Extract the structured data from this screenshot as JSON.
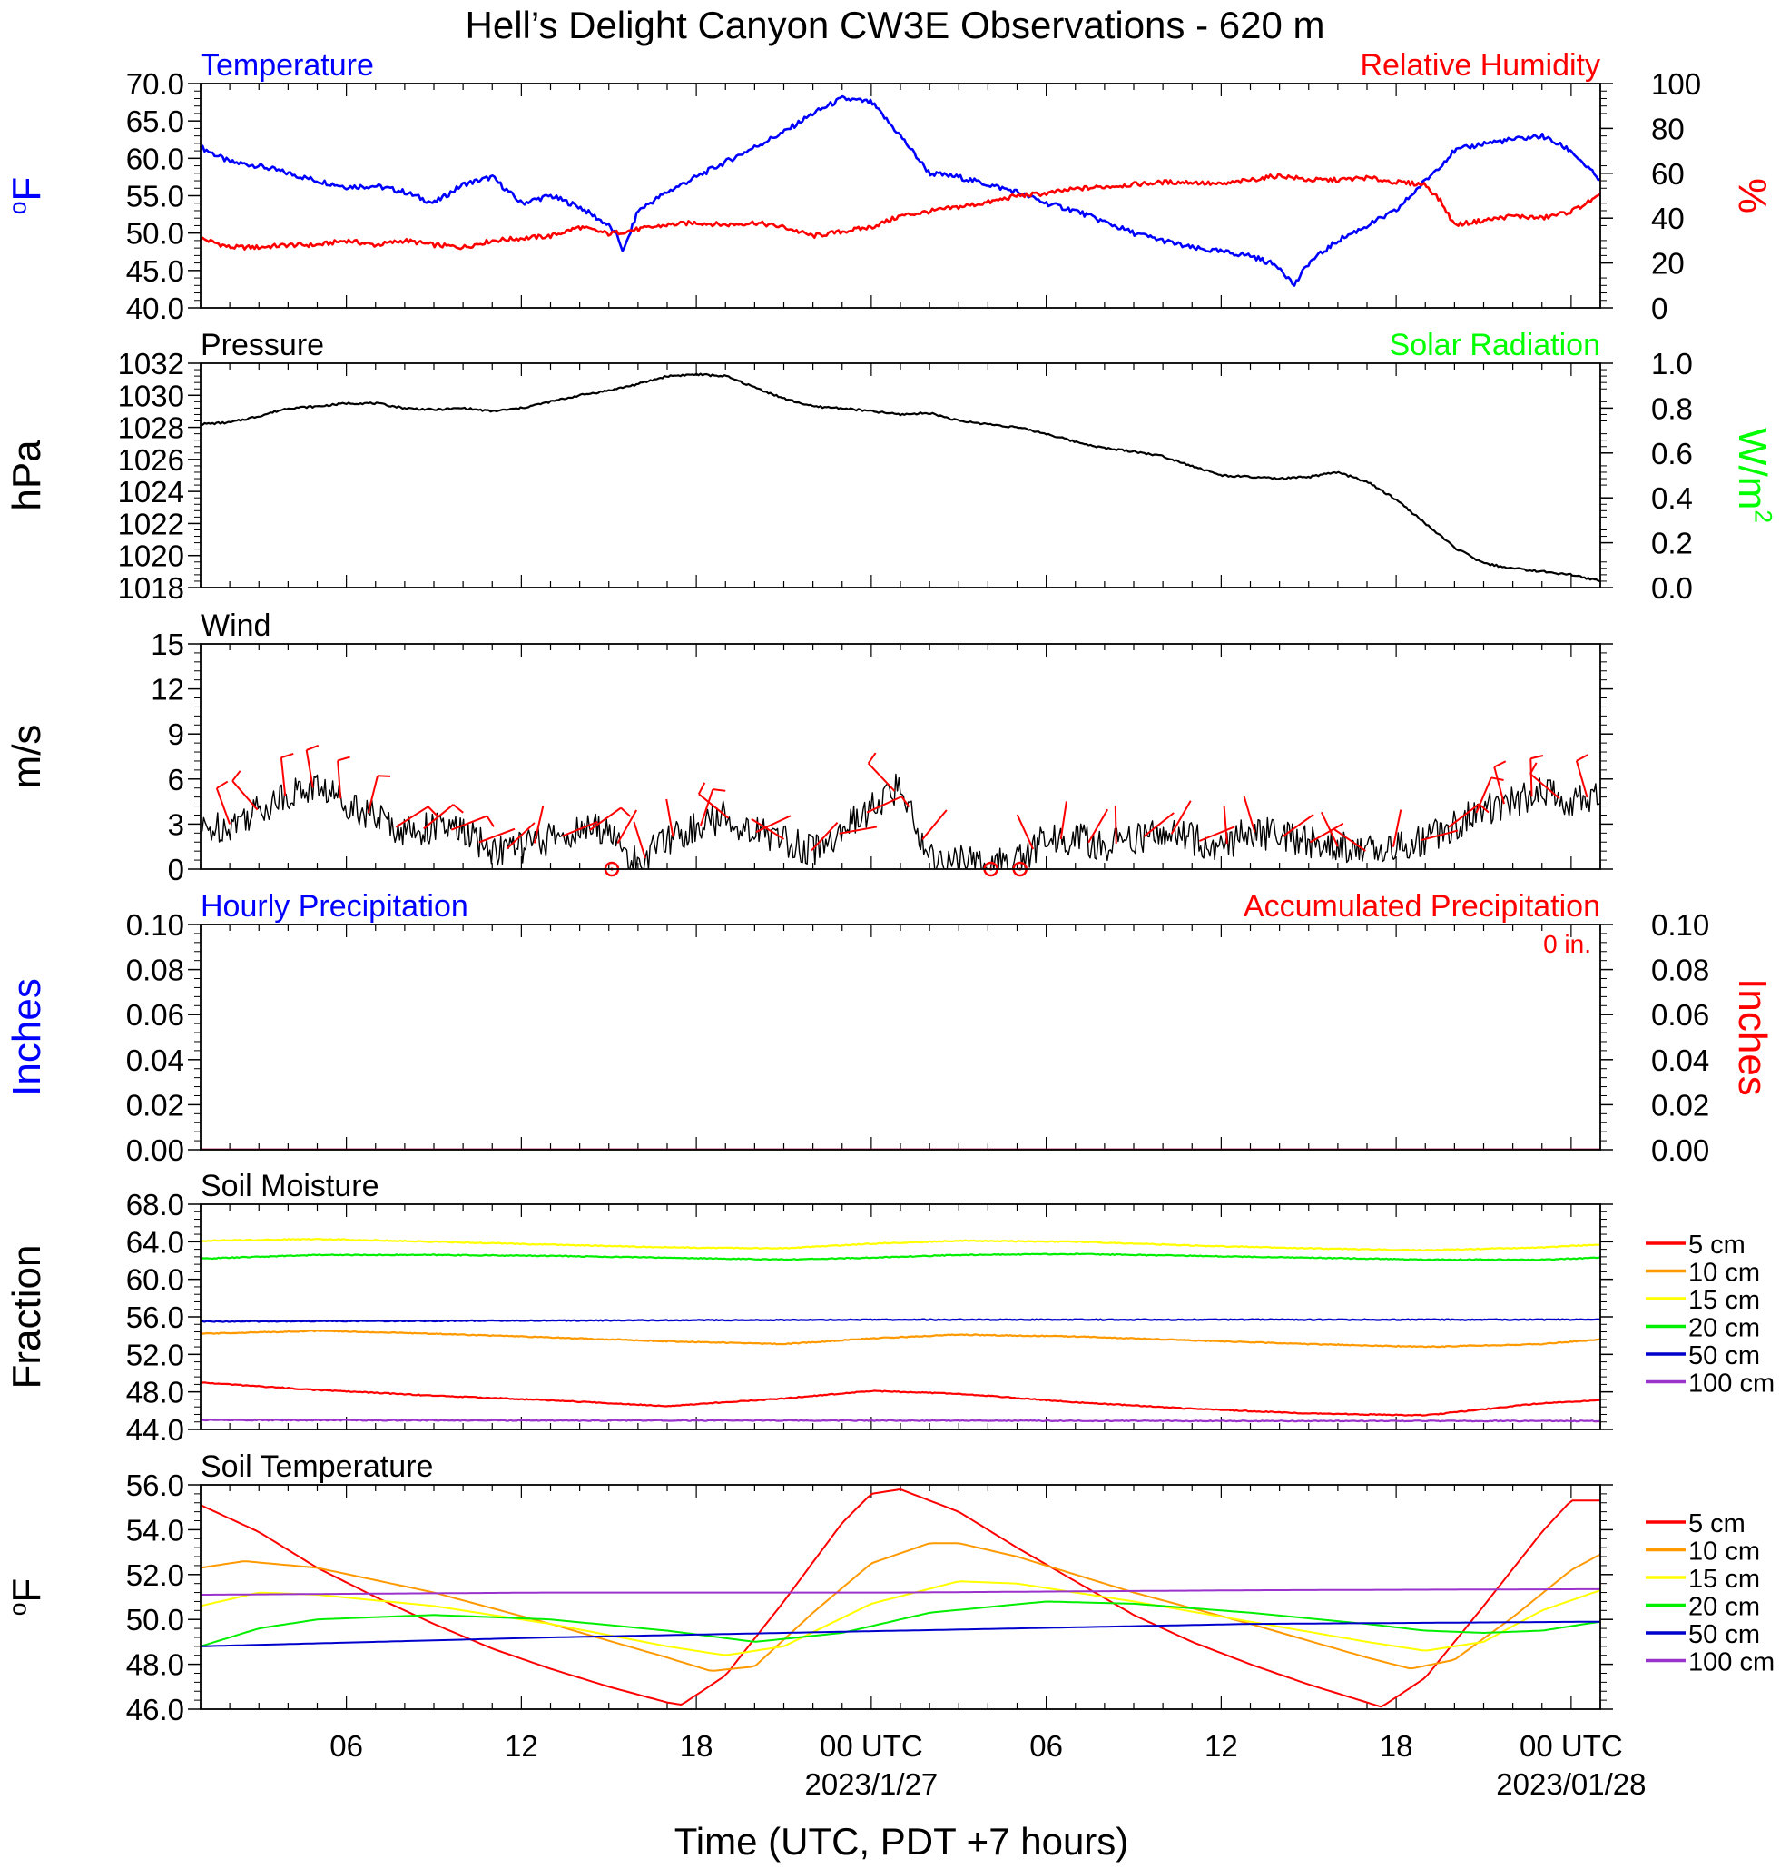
{
  "figure": {
    "title": "Hell’s Delight Canyon CW3E Observations - 620 m",
    "xlabel": "Time (UTC, PDT +7 hours)",
    "x_ticks": [
      {
        "h": 5,
        "label": "06"
      },
      {
        "h": 11,
        "label": "12"
      },
      {
        "h": 17,
        "label": "18"
      },
      {
        "h": 23,
        "label": "00 UTC"
      },
      {
        "h": 29,
        "label": "06"
      },
      {
        "h": 35,
        "label": "12"
      },
      {
        "h": 41,
        "label": "18"
      },
      {
        "h": 47,
        "label": "00 UTC"
      }
    ],
    "date_labels": [
      {
        "h": 23,
        "label": "2023/1/27"
      },
      {
        "h": 47,
        "label": "2023/01/28"
      }
    ],
    "x_range_hours": [
      0,
      48
    ]
  },
  "colors": {
    "temperature": "#0000ff",
    "humidity": "#ff0000",
    "pressure": "#000000",
    "solar": "#00ff00",
    "wind_speed": "#000000",
    "wind_barb": "#ff0000",
    "soil_5": "#ff0000",
    "soil_10": "#ff9900",
    "soil_15": "#ffff00",
    "soil_20": "#00ee00",
    "soil_50": "#0000cc",
    "soil_100": "#9933cc"
  },
  "chart_data": [
    {
      "type": "line",
      "panel": "temperature_humidity",
      "left_title": "Temperature",
      "right_title": "Relative Humidity",
      "ylabel_left": "oF",
      "ylabel_right": "%",
      "ylim_left": [
        40,
        70
      ],
      "ylim_right": [
        0,
        100
      ],
      "yticks_left": [
        "40.0",
        "45.0",
        "50.0",
        "55.0",
        "60.0",
        "65.0",
        "70.0"
      ],
      "yticks_right": [
        "0",
        "20",
        "40",
        "60",
        "80",
        "100"
      ],
      "series": [
        {
          "name": "Temperature",
          "axis": "left",
          "x": [
            0,
            1,
            2,
            3,
            4,
            5,
            6,
            7,
            8,
            9,
            10,
            11,
            12,
            13,
            14,
            14.3,
            14.5,
            15,
            16,
            17,
            18,
            19,
            20,
            21,
            22,
            23,
            24,
            25,
            26,
            27,
            28,
            29,
            30,
            31,
            32,
            33,
            34,
            35,
            36,
            37,
            37.5,
            38,
            39,
            40,
            41,
            42,
            43,
            44,
            45,
            46,
            47,
            48
          ],
          "y": [
            61.5,
            59.5,
            59,
            58,
            57,
            56.2,
            56.3,
            55.5,
            54,
            56.5,
            57.5,
            54,
            55,
            53.5,
            51,
            49.5,
            47.5,
            53,
            55.5,
            57.5,
            59.5,
            61.5,
            63.5,
            66,
            68,
            67.5,
            63,
            58,
            57.5,
            56.5,
            55.5,
            54,
            53,
            51.5,
            50,
            49,
            48,
            47.5,
            47,
            45.5,
            43,
            46,
            49,
            51,
            53,
            57,
            61,
            62,
            62.5,
            63,
            61,
            57
          ]
        },
        {
          "name": "Relative Humidity",
          "axis": "right",
          "x": [
            0,
            1,
            2,
            3,
            4,
            5,
            6,
            7,
            8,
            9,
            10,
            11,
            12,
            13,
            14,
            15,
            16,
            17,
            18,
            19,
            20,
            21,
            22,
            23,
            24,
            25,
            26,
            27,
            28,
            29,
            30,
            31,
            32,
            33,
            34,
            35,
            36,
            37,
            38,
            39,
            40,
            41,
            42,
            42.5,
            43,
            44,
            45,
            46,
            47,
            48
          ],
          "y": [
            31,
            27,
            27,
            28,
            28,
            30,
            28,
            30,
            28,
            27,
            30,
            31,
            32,
            36,
            33,
            35,
            37,
            38,
            37,
            38,
            36,
            32,
            34,
            36,
            41,
            43,
            45,
            47,
            50,
            51,
            53,
            54,
            55,
            56,
            56,
            55,
            57,
            59,
            57,
            57,
            58,
            56,
            55,
            48,
            37,
            39,
            41,
            40,
            43,
            50
          ]
        }
      ]
    },
    {
      "type": "line",
      "panel": "pressure_solar",
      "left_title": "Pressure",
      "right_title": "Solar Radiation",
      "ylabel_left": "hPa",
      "ylabel_right": "W/m2",
      "ylim_left": [
        1018,
        1032
      ],
      "ylim_right": [
        0,
        1
      ],
      "yticks_left": [
        "1018",
        "1020",
        "1022",
        "1024",
        "1026",
        "1028",
        "1030",
        "1032"
      ],
      "yticks_right": [
        "0.0",
        "0.2",
        "0.4",
        "0.6",
        "0.8",
        "1.0"
      ],
      "series": [
        {
          "name": "Pressure",
          "axis": "left",
          "x": [
            0,
            1,
            2,
            3,
            4,
            5,
            6,
            7,
            8,
            9,
            10,
            11,
            12,
            13,
            14,
            15,
            16,
            17,
            18,
            19,
            20,
            21,
            22,
            23,
            24,
            25,
            26,
            27,
            28,
            29,
            30,
            31,
            32,
            33,
            34,
            35,
            36,
            37,
            38,
            39,
            40,
            41,
            42,
            43,
            44,
            45,
            46,
            47,
            48
          ],
          "y": [
            1028.2,
            1028.3,
            1028.7,
            1029.2,
            1029.3,
            1029.5,
            1029.5,
            1029.2,
            1029.1,
            1029.2,
            1029.0,
            1029.2,
            1029.6,
            1030.0,
            1030.3,
            1030.7,
            1031.2,
            1031.3,
            1031.2,
            1030.5,
            1029.8,
            1029.3,
            1029.2,
            1029.0,
            1028.8,
            1028.9,
            1028.4,
            1028.2,
            1028.0,
            1027.6,
            1027.1,
            1026.7,
            1026.5,
            1026.2,
            1025.6,
            1025.0,
            1024.9,
            1024.8,
            1024.9,
            1025.2,
            1024.6,
            1023.5,
            1022.0,
            1020.5,
            1019.5,
            1019.2,
            1019.0,
            1018.8,
            1018.4
          ]
        }
      ]
    },
    {
      "type": "line",
      "panel": "wind",
      "left_title": "Wind",
      "ylabel_left": "m/s",
      "ylim_left": [
        0,
        15
      ],
      "yticks_left": [
        "0",
        "3",
        "6",
        "9",
        "12",
        "15"
      ],
      "series": [
        {
          "name": "Wind",
          "axis": "left",
          "x": [
            0,
            1,
            2,
            3,
            4,
            5,
            6,
            7,
            8,
            9,
            10,
            11,
            12,
            13,
            14,
            14.5,
            15,
            16,
            17,
            18,
            19,
            20,
            21,
            22,
            23,
            24,
            25,
            26,
            27,
            28,
            29,
            30,
            31,
            32,
            33,
            34,
            35,
            36,
            37,
            38,
            39,
            40,
            41,
            42,
            43,
            44,
            45,
            46,
            47,
            48
          ],
          "y": [
            2.5,
            3,
            4,
            5,
            5.5,
            4.5,
            3.5,
            2.5,
            2.8,
            2.5,
            1.2,
            1.5,
            2,
            2.5,
            2.8,
            1,
            0.3,
            2,
            2.8,
            3.5,
            2.5,
            2,
            1.2,
            2.5,
            4,
            5.5,
            0.8,
            0.5,
            0.2,
            0.5,
            2,
            2,
            1.5,
            2,
            2.5,
            2,
            1.5,
            2.5,
            2.2,
            1.8,
            1.5,
            1.2,
            1.5,
            2,
            3,
            4,
            4.5,
            5,
            4.5,
            5
          ]
        }
      ],
      "calm_markers_x": [
        14.1,
        27.1,
        28.1
      ]
    },
    {
      "type": "line",
      "panel": "precipitation",
      "left_title": "Hourly Precipitation",
      "right_title": "Accumulated Precipitation",
      "accum_label": "0 in.",
      "ylabel_left": "Inches",
      "ylabel_right": "Inches",
      "ylim_left": [
        0,
        0.1
      ],
      "ylim_right": [
        0,
        0.1
      ],
      "yticks_left": [
        "0.00",
        "0.02",
        "0.04",
        "0.06",
        "0.08",
        "0.10"
      ],
      "yticks_right": [
        "0.00",
        "0.02",
        "0.04",
        "0.06",
        "0.08",
        "0.10"
      ],
      "series": [
        {
          "name": "Hourly Precipitation",
          "axis": "left",
          "x": [
            0,
            48
          ],
          "y": [
            0,
            0
          ]
        },
        {
          "name": "Accumulated Precipitation",
          "axis": "right",
          "x": [
            0,
            48
          ],
          "y": [
            0,
            0
          ]
        }
      ]
    },
    {
      "type": "line",
      "panel": "soil_moisture",
      "left_title": "Soil Moisture",
      "ylabel_left": "Fraction",
      "ylim_left": [
        44,
        68
      ],
      "yticks_left": [
        "44.0",
        "48.0",
        "52.0",
        "56.0",
        "60.0",
        "64.0",
        "68.0"
      ],
      "legend": [
        "5 cm",
        "10 cm",
        "15 cm",
        "20 cm",
        "50 cm",
        "100 cm"
      ],
      "series": [
        {
          "name": "5 cm",
          "axis": "left",
          "x": [
            0,
            4,
            8,
            12,
            16,
            20,
            23,
            26,
            30,
            34,
            38,
            42,
            46,
            48
          ],
          "y": [
            49,
            48.2,
            47.6,
            47.1,
            46.5,
            47.3,
            48.1,
            47.8,
            46.9,
            46.2,
            45.7,
            45.5,
            46.8,
            47.1
          ]
        },
        {
          "name": "10 cm",
          "axis": "left",
          "x": [
            0,
            4,
            8,
            12,
            16,
            20,
            23,
            26,
            30,
            34,
            38,
            42,
            46,
            48
          ],
          "y": [
            54.2,
            54.5,
            54.2,
            53.8,
            53.4,
            53.1,
            53.7,
            54.1,
            53.9,
            53.5,
            53.1,
            52.8,
            53.1,
            53.6
          ]
        },
        {
          "name": "15 cm",
          "axis": "left",
          "x": [
            0,
            4,
            8,
            12,
            16,
            20,
            23,
            26,
            30,
            34,
            38,
            42,
            46,
            48
          ],
          "y": [
            64.1,
            64.3,
            64.0,
            63.7,
            63.4,
            63.3,
            63.8,
            64.1,
            64.0,
            63.6,
            63.3,
            63.1,
            63.4,
            63.7
          ]
        },
        {
          "name": "20 cm",
          "axis": "left",
          "x": [
            0,
            4,
            8,
            12,
            16,
            20,
            23,
            26,
            30,
            34,
            38,
            42,
            46,
            48
          ],
          "y": [
            62.2,
            62.6,
            62.6,
            62.5,
            62.3,
            62.1,
            62.3,
            62.6,
            62.7,
            62.5,
            62.3,
            62.1,
            62.1,
            62.3
          ]
        },
        {
          "name": "50 cm",
          "axis": "left",
          "x": [
            0,
            12,
            24,
            36,
            48
          ],
          "y": [
            55.5,
            55.6,
            55.7,
            55.7,
            55.7
          ]
        },
        {
          "name": "100 cm",
          "axis": "left",
          "x": [
            0,
            12,
            24,
            36,
            48
          ],
          "y": [
            45,
            44.95,
            44.95,
            44.9,
            44.9
          ]
        }
      ]
    },
    {
      "type": "line",
      "panel": "soil_temperature",
      "left_title": "Soil Temperature",
      "ylabel_left": "oF",
      "ylim_left": [
        46,
        56
      ],
      "yticks_left": [
        "46.0",
        "48.0",
        "50.0",
        "52.0",
        "54.0",
        "56.0"
      ],
      "legend": [
        "5 cm",
        "10 cm",
        "15 cm",
        "20 cm",
        "50 cm",
        "100 cm"
      ],
      "series": [
        {
          "name": "5 cm",
          "axis": "left",
          "x": [
            0,
            2,
            4,
            6,
            8,
            10,
            12,
            14,
            16,
            16.5,
            18,
            20,
            22,
            23,
            24,
            26,
            28,
            30,
            32,
            34,
            36,
            38,
            40,
            40.5,
            42,
            44,
            46,
            47,
            48
          ],
          "y": [
            55.1,
            53.9,
            52.3,
            51,
            49.8,
            48.7,
            47.8,
            47,
            46.3,
            46.2,
            47.5,
            50.8,
            54.3,
            55.6,
            55.8,
            54.8,
            53.2,
            51.7,
            50.2,
            49.0,
            48.0,
            47.1,
            46.3,
            46.1,
            47.4,
            50.6,
            53.9,
            55.3,
            55.3
          ]
        },
        {
          "name": "10 cm",
          "axis": "left",
          "x": [
            0,
            1.5,
            4,
            8,
            12,
            16,
            17.5,
            19,
            21,
            23,
            25,
            26,
            28,
            32,
            36,
            40,
            41.5,
            43,
            45,
            47,
            48
          ],
          "y": [
            52.3,
            52.6,
            52.3,
            51.2,
            49.8,
            48.3,
            47.7,
            47.9,
            50.3,
            52.5,
            53.4,
            53.4,
            52.8,
            51.2,
            49.8,
            48.3,
            47.8,
            48.2,
            50.1,
            52.2,
            52.9
          ]
        },
        {
          "name": "15 cm",
          "axis": "left",
          "x": [
            0,
            2,
            4,
            8,
            12,
            16,
            18,
            20,
            23,
            26,
            28,
            32,
            36,
            40,
            42,
            44,
            46,
            48
          ],
          "y": [
            50.6,
            51.2,
            51.1,
            50.6,
            49.8,
            48.8,
            48.4,
            48.8,
            50.7,
            51.7,
            51.6,
            50.8,
            49.9,
            49,
            48.6,
            49,
            50.4,
            51.3
          ]
        },
        {
          "name": "20 cm",
          "axis": "left",
          "x": [
            0,
            2,
            4,
            8,
            12,
            16,
            19,
            22,
            25,
            29,
            32,
            36,
            40,
            42,
            44,
            46,
            48
          ],
          "y": [
            48.8,
            49.6,
            50.0,
            50.2,
            50.0,
            49.5,
            49.0,
            49.4,
            50.3,
            50.8,
            50.7,
            50.3,
            49.8,
            49.5,
            49.4,
            49.5,
            49.9
          ]
        },
        {
          "name": "50 cm",
          "axis": "left",
          "x": [
            0,
            12,
            24,
            36,
            48
          ],
          "y": [
            48.8,
            49.2,
            49.5,
            49.8,
            49.9
          ]
        },
        {
          "name": "100 cm",
          "axis": "left",
          "x": [
            0,
            12,
            24,
            36,
            48
          ],
          "y": [
            51.1,
            51.2,
            51.2,
            51.3,
            51.35
          ]
        }
      ]
    }
  ]
}
